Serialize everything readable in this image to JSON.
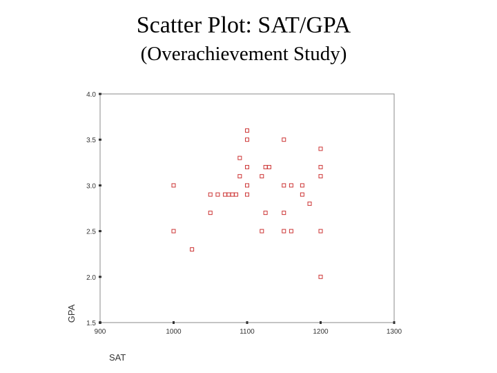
{
  "title": "Scatter Plot: SAT/GPA",
  "subtitle": "(Overachievement Study)",
  "chart_data": {
    "type": "scatter",
    "xlabel": "SAT",
    "ylabel": "GPA",
    "xlim": [
      900,
      1300
    ],
    "ylim": [
      1.5,
      4.0
    ],
    "x_ticks": [
      "900",
      "1000",
      "1100",
      "1200",
      "1300"
    ],
    "y_ticks": [
      "1.5",
      "2.0",
      "2.5",
      "3.0",
      "3.5",
      "4.0"
    ],
    "marker_color": "#cc3333",
    "grid": false,
    "points": [
      [
        1000,
        3.0
      ],
      [
        1000,
        2.5
      ],
      [
        1025,
        2.3
      ],
      [
        1050,
        2.9
      ],
      [
        1050,
        2.7
      ],
      [
        1060,
        2.9
      ],
      [
        1070,
        2.9
      ],
      [
        1075,
        2.9
      ],
      [
        1080,
        2.9
      ],
      [
        1085,
        2.9
      ],
      [
        1090,
        3.3
      ],
      [
        1090,
        3.1
      ],
      [
        1100,
        3.6
      ],
      [
        1100,
        3.5
      ],
      [
        1100,
        3.2
      ],
      [
        1100,
        3.0
      ],
      [
        1100,
        2.9
      ],
      [
        1120,
        3.1
      ],
      [
        1120,
        2.5
      ],
      [
        1125,
        3.2
      ],
      [
        1130,
        3.2
      ],
      [
        1125,
        2.7
      ],
      [
        1150,
        3.5
      ],
      [
        1150,
        3.0
      ],
      [
        1150,
        2.7
      ],
      [
        1150,
        2.5
      ],
      [
        1160,
        3.0
      ],
      [
        1160,
        2.5
      ],
      [
        1175,
        3.0
      ],
      [
        1175,
        2.9
      ],
      [
        1185,
        2.8
      ],
      [
        1200,
        3.4
      ],
      [
        1200,
        3.2
      ],
      [
        1200,
        3.1
      ],
      [
        1200,
        2.5
      ],
      [
        1200,
        2.0
      ]
    ]
  }
}
